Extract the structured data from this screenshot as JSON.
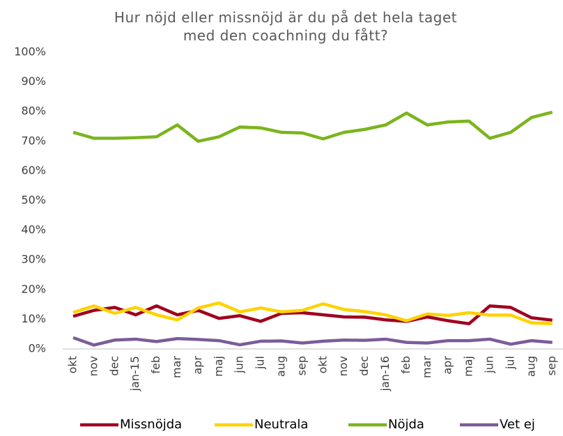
{
  "chart_data": {
    "type": "line",
    "title": "Hur nöjd eller missnöjd är du på det hela taget med den coachning du fått?",
    "categories": [
      "okt",
      "nov",
      "dec",
      "jan-15",
      "feb",
      "mar",
      "apr",
      "maj",
      "jun",
      "jul",
      "aug",
      "sep",
      "okt",
      "nov",
      "dec",
      "jan-16",
      "feb",
      "mar",
      "apr",
      "maj",
      "jun",
      "jul",
      "aug",
      "sep"
    ],
    "series": [
      {
        "name": "Missnöjda",
        "color": "#a0001e",
        "values": [
          11,
          13,
          14,
          11.5,
          14.5,
          11.5,
          13,
          10.3,
          11.2,
          9.3,
          12,
          12.2,
          11.5,
          10.8,
          10.7,
          9.8,
          9.3,
          10.8,
          9.5,
          8.5,
          14.5,
          14,
          10.5,
          9.7
        ]
      },
      {
        "name": "Neutrala",
        "color": "#ffd200",
        "values": [
          12.3,
          14.5,
          12,
          14,
          11.5,
          9.8,
          13.8,
          15.5,
          12.5,
          13.8,
          12.5,
          13,
          15.2,
          13.3,
          12.6,
          11.5,
          9.5,
          11.8,
          11.3,
          12.2,
          11.4,
          11.4,
          8.8,
          8.5
        ]
      },
      {
        "name": "Nöjda",
        "color": "#7ab51d",
        "values": [
          73,
          71,
          71,
          71.2,
          71.5,
          75.5,
          70,
          71.5,
          74.8,
          74.5,
          73,
          72.8,
          70.8,
          73,
          74,
          75.5,
          79.5,
          75.5,
          76.5,
          76.8,
          71,
          73,
          78,
          79.8
        ]
      },
      {
        "name": "Vet ej",
        "color": "#7d5c9a",
        "values": [
          3.8,
          1.3,
          3,
          3.3,
          2.5,
          3.5,
          3.2,
          2.8,
          1.4,
          2.6,
          2.7,
          2,
          2.6,
          3,
          2.9,
          3.3,
          2.2,
          2,
          2.8,
          2.8,
          3.3,
          1.6,
          2.8,
          2.2
        ]
      }
    ],
    "ylim": [
      0,
      100
    ],
    "yticks": [
      {
        "value": 0,
        "label": "0%"
      },
      {
        "value": 10,
        "label": "10%"
      },
      {
        "value": 20,
        "label": "20%"
      },
      {
        "value": 30,
        "label": "30%"
      },
      {
        "value": 40,
        "label": "40%"
      },
      {
        "value": 50,
        "label": "50%"
      },
      {
        "value": 60,
        "label": "60%"
      },
      {
        "value": 70,
        "label": "70%"
      },
      {
        "value": 80,
        "label": "80%"
      },
      {
        "value": 90,
        "label": "90%"
      },
      {
        "value": 100,
        "label": "100%"
      }
    ],
    "grid": false,
    "legend": "bottom"
  }
}
